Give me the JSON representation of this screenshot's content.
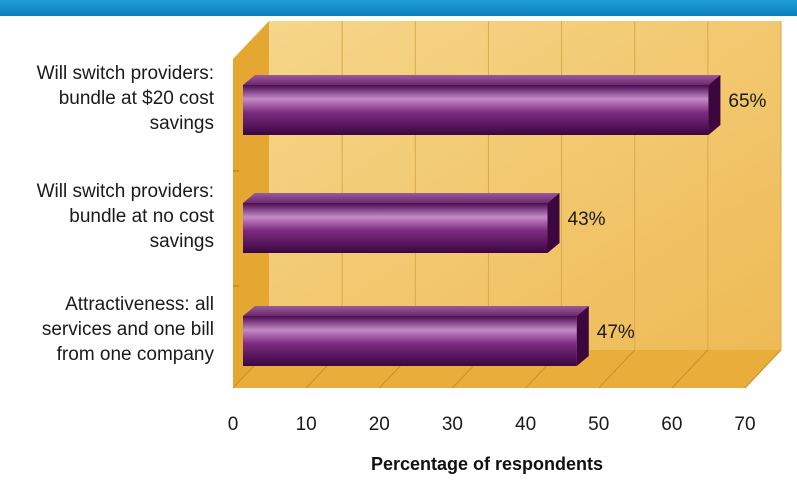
{
  "chart_data": {
    "type": "bar",
    "orientation": "horizontal",
    "categories": [
      [
        "Will switch providers:",
        "bundle at $20 cost",
        "savings"
      ],
      [
        "Will switch providers:",
        "bundle at no cost",
        "savings"
      ],
      [
        "Attractiveness: all",
        "services and one bill",
        "from one company"
      ]
    ],
    "values": [
      65,
      43,
      47
    ],
    "value_labels": [
      "65%",
      "43%",
      "47%"
    ],
    "xlabel": "Percentage of respondents",
    "xlim": [
      0,
      70
    ],
    "xticks": [
      "0",
      "10",
      "20",
      "30",
      "40",
      "50",
      "60",
      "70"
    ],
    "grid": true,
    "colors": {
      "bar": "#6a1d6e",
      "bar_highlight": "#c48ac6",
      "panel": "#f0c870",
      "floor": "#e8ad3a",
      "header_strip": "#1292cf"
    }
  }
}
